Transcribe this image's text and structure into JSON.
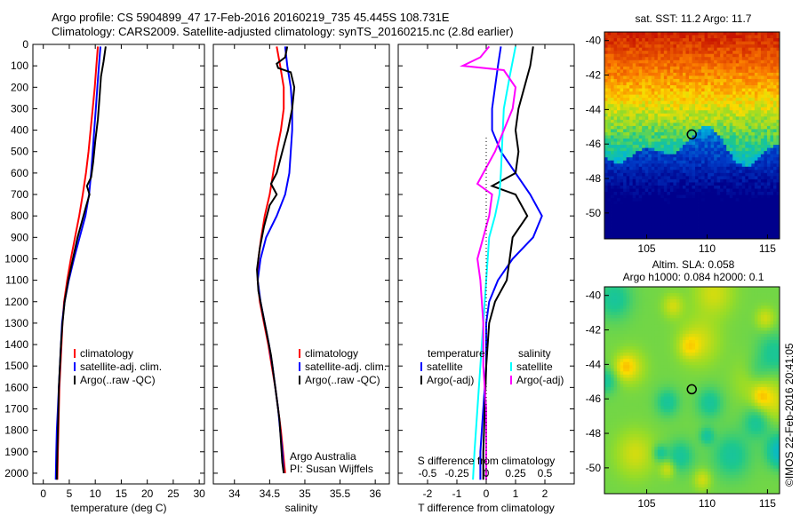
{
  "header": {
    "line1": "Argo profile: CS 5904899_47 17-Feb-2016 20160219_735 45.445S 108.731E",
    "line2": "Climatology: CARS2009. Satellite-adjusted climatology: synTS_20160215.nc (2.8d earlier)"
  },
  "credit": "©IMOS 22-Feb-2016 20:41:05",
  "credit_inst": "Argo Australia",
  "credit_pi": "PI: Susan Wijffels",
  "colors": {
    "black": "#000000",
    "blue": "#0000ff",
    "red": "#ff0000",
    "cyan": "#00ffff",
    "magenta": "#ff00ff"
  },
  "chart_data": [
    {
      "id": "temp",
      "type": "line",
      "xlabel": "temperature (deg C)",
      "ylabel": "",
      "xlim": [
        -2,
        31
      ],
      "ylim": [
        0,
        2050
      ],
      "xticks": [
        "0",
        "5",
        "10",
        "15",
        "20",
        "25",
        "30"
      ],
      "yticks": [
        "0",
        "100",
        "200",
        "300",
        "400",
        "500",
        "600",
        "700",
        "800",
        "900",
        "1000",
        "1100",
        "1200",
        "1300",
        "1400",
        "1500",
        "1600",
        "1700",
        "1800",
        "1900",
        "2000"
      ],
      "legend": [
        "climatology",
        "satellite-adj. clim.",
        "Argo(..raw -QC)"
      ],
      "series": [
        {
          "name": "climatology",
          "color": "red",
          "points": [
            [
              10.5,
              10
            ],
            [
              10.2,
              100
            ],
            [
              9.9,
              200
            ],
            [
              9.5,
              300
            ],
            [
              9.1,
              400
            ],
            [
              8.7,
              500
            ],
            [
              8.2,
              600
            ],
            [
              7.6,
              700
            ],
            [
              6.9,
              800
            ],
            [
              6.1,
              900
            ],
            [
              5.3,
              1000
            ],
            [
              4.6,
              1100
            ],
            [
              4.0,
              1200
            ],
            [
              3.7,
              1300
            ],
            [
              3.5,
              1400
            ],
            [
              3.3,
              1500
            ],
            [
              3.1,
              1600
            ],
            [
              3.0,
              1700
            ],
            [
              2.9,
              1800
            ],
            [
              2.8,
              1900
            ],
            [
              2.7,
              2030
            ]
          ]
        },
        {
          "name": "satellite-adj. clim.",
          "color": "blue",
          "points": [
            [
              11.0,
              10
            ],
            [
              10.7,
              100
            ],
            [
              10.4,
              200
            ],
            [
              10.1,
              300
            ],
            [
              9.8,
              400
            ],
            [
              9.5,
              500
            ],
            [
              9.2,
              600
            ],
            [
              8.8,
              700
            ],
            [
              8.1,
              800
            ],
            [
              7.0,
              900
            ],
            [
              5.9,
              1000
            ],
            [
              4.9,
              1100
            ],
            [
              4.1,
              1200
            ],
            [
              3.6,
              1300
            ],
            [
              3.4,
              1400
            ],
            [
              3.2,
              1500
            ],
            [
              3.0,
              1600
            ],
            [
              2.8,
              1700
            ],
            [
              2.6,
              1800
            ],
            [
              2.5,
              1900
            ],
            [
              2.4,
              2030
            ]
          ]
        },
        {
          "name": "Argo(..raw -QC)",
          "color": "black",
          "points": [
            [
              12.0,
              10
            ],
            [
              11.6,
              80
            ],
            [
              11.1,
              150
            ],
            [
              10.8,
              250
            ],
            [
              10.5,
              350
            ],
            [
              10.0,
              450
            ],
            [
              9.6,
              550
            ],
            [
              9.2,
              620
            ],
            [
              8.4,
              660
            ],
            [
              8.9,
              700
            ],
            [
              8.3,
              750
            ],
            [
              7.5,
              820
            ],
            [
              6.6,
              900
            ],
            [
              5.7,
              1000
            ],
            [
              4.8,
              1100
            ],
            [
              4.1,
              1200
            ],
            [
              3.7,
              1300
            ],
            [
              3.4,
              1400
            ],
            [
              3.2,
              1500
            ],
            [
              3.0,
              1600
            ],
            [
              2.9,
              1700
            ],
            [
              2.8,
              1800
            ],
            [
              2.7,
              1900
            ],
            [
              2.6,
              2030
            ]
          ]
        }
      ]
    },
    {
      "id": "sal",
      "type": "line",
      "xlabel": "salinity",
      "xlim": [
        33.7,
        36.2
      ],
      "ylim": [
        0,
        2050
      ],
      "xticks": [
        "34",
        "34.5",
        "35",
        "35.5",
        "36"
      ],
      "legend": [
        "climatology",
        "satellite-adj. clim.",
        "Argo(..raw -QC)"
      ],
      "series": [
        {
          "name": "climatology",
          "color": "red",
          "points": [
            [
              34.6,
              10
            ],
            [
              34.65,
              100
            ],
            [
              34.7,
              200
            ],
            [
              34.7,
              300
            ],
            [
              34.66,
              400
            ],
            [
              34.6,
              500
            ],
            [
              34.55,
              600
            ],
            [
              34.5,
              700
            ],
            [
              34.43,
              800
            ],
            [
              34.38,
              900
            ],
            [
              34.34,
              1000
            ],
            [
              34.33,
              1100
            ],
            [
              34.36,
              1200
            ],
            [
              34.42,
              1300
            ],
            [
              34.48,
              1400
            ],
            [
              34.53,
              1500
            ],
            [
              34.58,
              1600
            ],
            [
              34.62,
              1700
            ],
            [
              34.66,
              1800
            ],
            [
              34.69,
              1900
            ],
            [
              34.72,
              2000
            ]
          ]
        },
        {
          "name": "satellite-adj. clim.",
          "color": "blue",
          "points": [
            [
              34.72,
              10
            ],
            [
              34.75,
              100
            ],
            [
              34.8,
              200
            ],
            [
              34.82,
              300
            ],
            [
              34.82,
              400
            ],
            [
              34.8,
              500
            ],
            [
              34.78,
              600
            ],
            [
              34.72,
              700
            ],
            [
              34.6,
              800
            ],
            [
              34.45,
              900
            ],
            [
              34.37,
              1000
            ],
            [
              34.33,
              1100
            ],
            [
              34.37,
              1200
            ],
            [
              34.43,
              1300
            ],
            [
              34.49,
              1400
            ],
            [
              34.54,
              1500
            ],
            [
              34.58,
              1600
            ],
            [
              34.62,
              1700
            ],
            [
              34.65,
              1800
            ],
            [
              34.68,
              1900
            ],
            [
              34.7,
              2000
            ]
          ]
        },
        {
          "name": "Argo(..raw -QC)",
          "color": "black",
          "points": [
            [
              34.75,
              10
            ],
            [
              34.72,
              60
            ],
            [
              34.6,
              90
            ],
            [
              34.62,
              110
            ],
            [
              34.8,
              130
            ],
            [
              34.85,
              200
            ],
            [
              34.82,
              300
            ],
            [
              34.76,
              400
            ],
            [
              34.68,
              500
            ],
            [
              34.6,
              600
            ],
            [
              34.52,
              650
            ],
            [
              34.6,
              700
            ],
            [
              34.5,
              750
            ],
            [
              34.42,
              850
            ],
            [
              34.36,
              950
            ],
            [
              34.32,
              1050
            ],
            [
              34.34,
              1150
            ],
            [
              34.4,
              1250
            ],
            [
              34.46,
              1350
            ],
            [
              34.52,
              1450
            ],
            [
              34.56,
              1550
            ],
            [
              34.6,
              1650
            ],
            [
              34.64,
              1750
            ],
            [
              34.66,
              1850
            ],
            [
              34.68,
              1950
            ],
            [
              34.7,
              2000
            ]
          ]
        }
      ]
    },
    {
      "id": "diff",
      "type": "line",
      "xlabel": "T difference from climatology",
      "x2label": "S difference from climatology",
      "xlim": [
        -3,
        3
      ],
      "ylim": [
        0,
        2050
      ],
      "xticks": [
        "-2",
        "-1",
        "0",
        "1",
        "2"
      ],
      "x2ticks": [
        "-0.5",
        "-0.25",
        "0",
        "0.25",
        "0.5"
      ],
      "legend_t_title": "temperature",
      "legend_s_title": "salinity",
      "legend_t": [
        "satellite",
        "Argo(-adj)"
      ],
      "legend_s": [
        "satellite",
        "Argo(-adj)"
      ],
      "series": [
        {
          "name": "satellite",
          "color": "blue",
          "points": [
            [
              0.5,
              10
            ],
            [
              0.4,
              100
            ],
            [
              0.3,
              200
            ],
            [
              0.2,
              300
            ],
            [
              0.2,
              400
            ],
            [
              0.5,
              500
            ],
            [
              1.0,
              600
            ],
            [
              1.5,
              700
            ],
            [
              1.9,
              800
            ],
            [
              1.6,
              900
            ],
            [
              0.9,
              1000
            ],
            [
              0.4,
              1100
            ],
            [
              0.1,
              1200
            ],
            [
              0.0,
              1300
            ],
            [
              0.0,
              1500
            ],
            [
              -0.1,
              1700
            ],
            [
              -0.2,
              1900
            ],
            [
              -0.2,
              2030
            ]
          ]
        },
        {
          "name": "Argo(-adj)",
          "color": "black",
          "points": [
            [
              1.6,
              10
            ],
            [
              1.5,
              100
            ],
            [
              1.3,
              200
            ],
            [
              1.1,
              300
            ],
            [
              1.0,
              400
            ],
            [
              1.1,
              500
            ],
            [
              1.0,
              600
            ],
            [
              0.2,
              660
            ],
            [
              1.0,
              700
            ],
            [
              1.4,
              800
            ],
            [
              0.9,
              900
            ],
            [
              0.8,
              1000
            ],
            [
              0.7,
              1100
            ],
            [
              0.3,
              1200
            ],
            [
              0.1,
              1300
            ],
            [
              0.0,
              1500
            ],
            [
              -0.05,
              1700
            ],
            [
              -0.1,
              1900
            ],
            [
              -0.1,
              2030
            ]
          ]
        },
        {
          "name": "satellite (S)",
          "color": "cyan",
          "points": [
            [
              1.0,
              10
            ],
            [
              0.9,
              80
            ],
            [
              0.8,
              150
            ],
            [
              0.6,
              300
            ],
            [
              0.55,
              450
            ],
            [
              0.5,
              600
            ],
            [
              0.45,
              700
            ],
            [
              0.3,
              800
            ],
            [
              0.1,
              900
            ],
            [
              0.0,
              1100
            ],
            [
              -0.1,
              1300
            ],
            [
              -0.2,
              1500
            ],
            [
              -0.3,
              1700
            ],
            [
              -0.4,
              1900
            ],
            [
              -0.45,
              2030
            ]
          ]
        },
        {
          "name": "Argo(-adj) (S)",
          "color": "magenta",
          "points": [
            [
              0.1,
              10
            ],
            [
              -0.2,
              60
            ],
            [
              -0.8,
              100
            ],
            [
              0.6,
              120
            ],
            [
              1.0,
              200
            ],
            [
              0.9,
              300
            ],
            [
              0.6,
              400
            ],
            [
              0.3,
              500
            ],
            [
              -0.1,
              600
            ],
            [
              -0.3,
              650
            ],
            [
              0.2,
              700
            ],
            [
              0.1,
              800
            ],
            [
              -0.1,
              900
            ],
            [
              -0.3,
              1000
            ],
            [
              -0.2,
              1100
            ],
            [
              -0.1,
              1300
            ],
            [
              -0.1,
              1500
            ],
            [
              0.0,
              1700
            ],
            [
              0.0,
              1900
            ],
            [
              0.0,
              2030
            ]
          ]
        }
      ]
    },
    {
      "id": "sst",
      "type": "heatmap",
      "title": "sat. SST: 11.2  Argo: 11.7",
      "xlim": [
        101.5,
        116
      ],
      "ylim": [
        -51.5,
        -39.5
      ],
      "xticks": [
        "105",
        "110",
        "115"
      ],
      "yticks": [
        "-40",
        "-42",
        "-44",
        "-46",
        "-48",
        "-50"
      ],
      "marker": [
        108.731,
        -45.445
      ]
    },
    {
      "id": "sla",
      "type": "heatmap",
      "title1": "Altim. SLA: 0.058",
      "title2": "Argo h1000: 0.084  h2000: 0.1",
      "xlim": [
        101.5,
        116
      ],
      "ylim": [
        -51.5,
        -39.5
      ],
      "xticks": [
        "105",
        "110",
        "115"
      ],
      "yticks": [
        "-40",
        "-42",
        "-44",
        "-46",
        "-48",
        "-50"
      ],
      "marker": [
        108.731,
        -45.445
      ]
    }
  ]
}
